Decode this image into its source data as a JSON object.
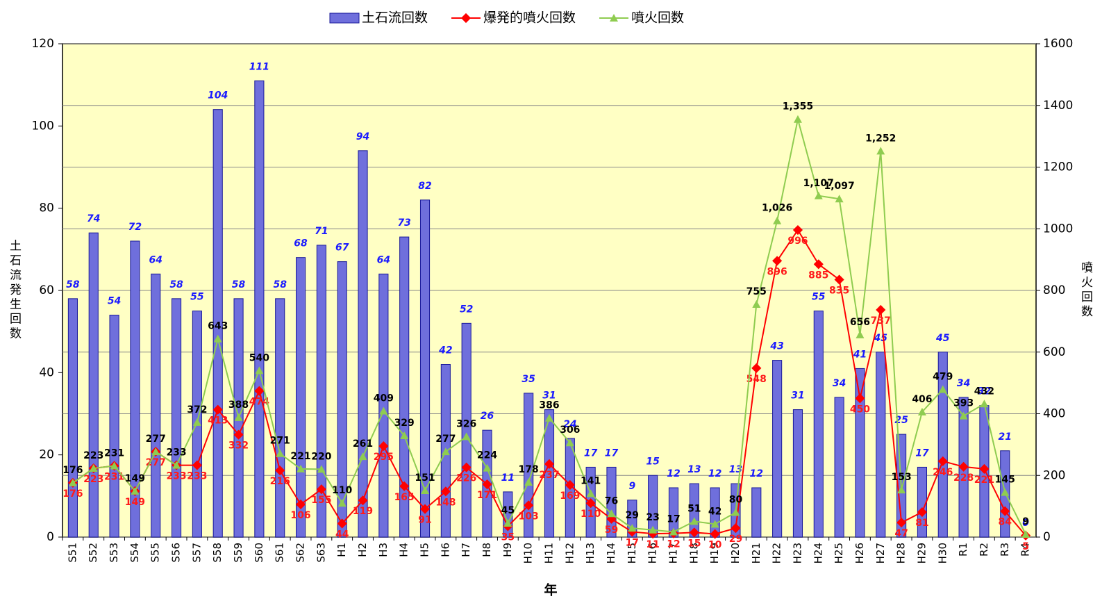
{
  "chart_data": {
    "type": "bar",
    "x_label": "年",
    "y_label": "土石流発生回数",
    "y2_label": "噴火回数",
    "categories": [
      "S51",
      "S52",
      "S53",
      "S54",
      "S55",
      "S56",
      "S57",
      "S58",
      "S59",
      "S60",
      "S61",
      "S62",
      "S63",
      "H1",
      "H2",
      "H3",
      "H4",
      "H5",
      "H6",
      "H7",
      "H8",
      "H9",
      "H10",
      "H11",
      "H12",
      "H13",
      "H14",
      "H15",
      "H16",
      "H17",
      "H18",
      "H19",
      "H20",
      "H21",
      "H22",
      "H23",
      "H24",
      "H25",
      "H26",
      "H27",
      "H28",
      "H29",
      "H30",
      "R1",
      "R2",
      "R3",
      "R4"
    ],
    "series": [
      {
        "name": "土石流回数",
        "type": "bar",
        "color": "#6f6fdc",
        "label_color": "#1a1aff",
        "values": [
          58,
          74,
          54,
          72,
          64,
          58,
          55,
          104,
          58,
          111,
          58,
          68,
          71,
          67,
          94,
          64,
          73,
          82,
          42,
          52,
          26,
          11,
          35,
          31,
          24,
          17,
          17,
          9,
          15,
          12,
          13,
          12,
          13,
          12,
          43,
          31,
          55,
          34,
          41,
          45,
          25,
          17,
          45,
          34,
          32,
          21,
          0
        ]
      },
      {
        "name": "爆発的噴火回数",
        "type": "line",
        "axis": "y2",
        "color": "#ff0000",
        "label_color": "#ff1a1a",
        "values": [
          176,
          223,
          231,
          149,
          277,
          233,
          233,
          413,
          332,
          474,
          216,
          106,
          155,
          44,
          119,
          295,
          165,
          91,
          148,
          226,
          171,
          35,
          103,
          237,
          169,
          110,
          59,
          17,
          11,
          12,
          15,
          10,
          29,
          548,
          896,
          996,
          885,
          835,
          450,
          737,
          47,
          81,
          246,
          228,
          221,
          84,
          5
        ]
      },
      {
        "name": "噴火回数",
        "type": "line",
        "axis": "y2",
        "color": "#8fcc50",
        "label_color": "#000000",
        "values": [
          176,
          223,
          231,
          149,
          277,
          233,
          372,
          643,
          388,
          540,
          271,
          221,
          220,
          110,
          261,
          409,
          329,
          151,
          277,
          326,
          224,
          45,
          178,
          386,
          306,
          141,
          76,
          29,
          23,
          17,
          51,
          42,
          80,
          755,
          1026,
          1355,
          1107,
          1097,
          656,
          1252,
          153,
          406,
          479,
          393,
          432,
          145,
          9
        ],
        "value_labels": [
          "176",
          "223",
          "231",
          "149",
          "277",
          "233",
          "372",
          "643",
          "388",
          "540",
          "271",
          "221",
          "220",
          "110",
          "261",
          "409",
          "329",
          "151",
          "277",
          "326",
          "224",
          "45",
          "178",
          "386",
          "306",
          "141",
          "76",
          "29",
          "23",
          "17",
          "51",
          "42",
          "80",
          "755",
          "1,026",
          "1,355",
          "1,107",
          "1,097",
          "656",
          "1,252",
          "153",
          "406",
          "479",
          "393",
          "432",
          "145",
          "9"
        ]
      }
    ],
    "ylim": [
      0,
      120
    ],
    "yticks": [
      0,
      20,
      40,
      60,
      80,
      100,
      120
    ],
    "y2lim": [
      0,
      1600
    ],
    "y2ticks": [
      0,
      200,
      400,
      600,
      800,
      1000,
      1200,
      1400,
      1600
    ],
    "grid": true,
    "background": "#ffffc4"
  }
}
